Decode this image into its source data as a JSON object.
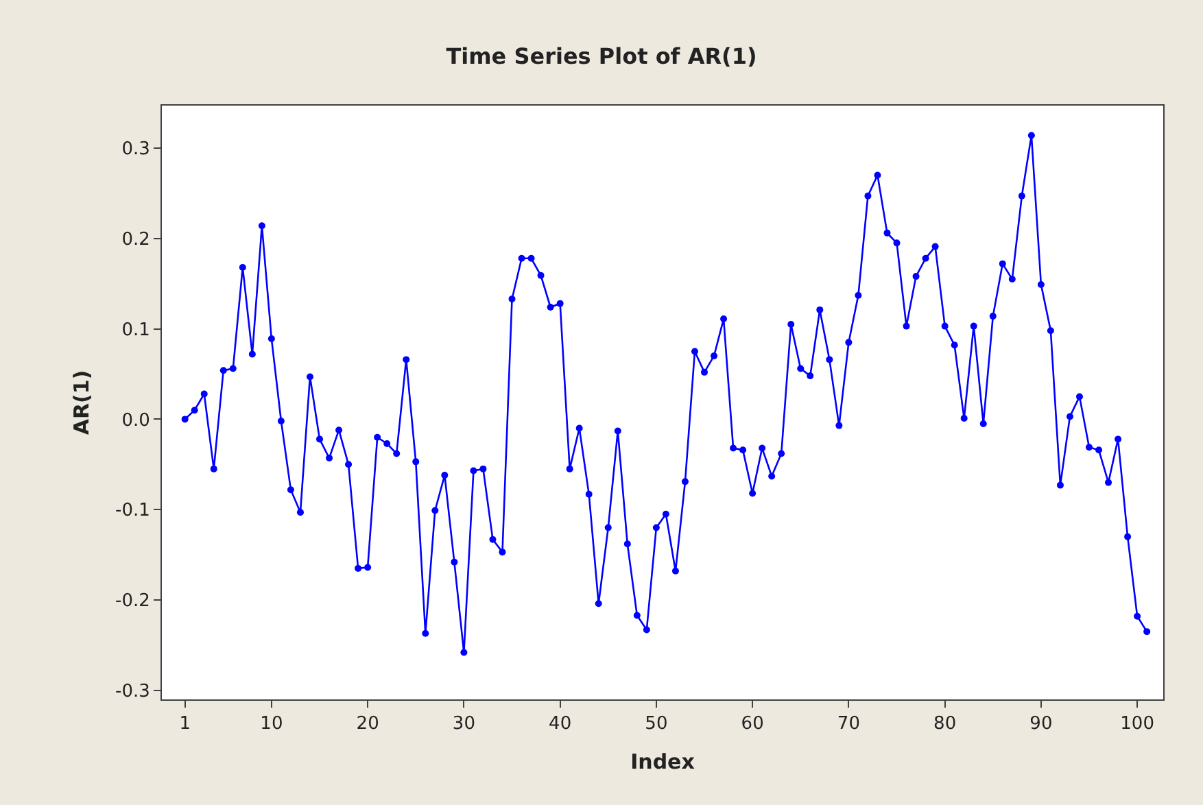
{
  "chart_data": {
    "type": "line",
    "title": "Time Series Plot of AR(1)",
    "xlabel": "Index",
    "ylabel": "AR(1)",
    "x": [
      1,
      2,
      3,
      4,
      5,
      6,
      7,
      8,
      9,
      10,
      11,
      12,
      13,
      14,
      15,
      16,
      17,
      18,
      19,
      20,
      21,
      22,
      23,
      24,
      25,
      26,
      27,
      28,
      29,
      30,
      31,
      32,
      33,
      34,
      35,
      36,
      37,
      38,
      39,
      40,
      41,
      42,
      43,
      44,
      45,
      46,
      47,
      48,
      49,
      50,
      51,
      52,
      53,
      54,
      55,
      56,
      57,
      58,
      59,
      60,
      61,
      62,
      63,
      64,
      65,
      66,
      67,
      68,
      69,
      70,
      71,
      72,
      73,
      74,
      75,
      76,
      77,
      78,
      79,
      80,
      81,
      82,
      83,
      84,
      85,
      86,
      87,
      88,
      89,
      90,
      91,
      92,
      93,
      94,
      95,
      96,
      97,
      98,
      99,
      100,
      101
    ],
    "series": [
      {
        "color": "#0000ff",
        "values": [
          0.0,
          0.01,
          0.028,
          -0.055,
          0.054,
          0.056,
          0.168,
          0.072,
          0.214,
          0.089,
          -0.002,
          -0.078,
          -0.103,
          0.047,
          -0.022,
          -0.043,
          -0.012,
          -0.05,
          -0.165,
          -0.164,
          -0.02,
          -0.027,
          -0.038,
          0.066,
          -0.047,
          -0.237,
          -0.101,
          -0.062,
          -0.158,
          -0.258,
          -0.057,
          -0.055,
          -0.133,
          -0.147,
          0.133,
          0.178,
          0.178,
          0.159,
          0.124,
          0.128,
          -0.055,
          -0.01,
          -0.083,
          -0.204,
          -0.12,
          -0.013,
          -0.138,
          -0.217,
          -0.233,
          -0.12,
          -0.105,
          -0.168,
          -0.069,
          0.075,
          0.052,
          0.07,
          0.111,
          -0.032,
          -0.034,
          -0.082,
          -0.032,
          -0.063,
          -0.038,
          0.105,
          0.056,
          0.048,
          0.121,
          0.066,
          -0.007,
          0.085,
          0.137,
          0.247,
          0.27,
          0.206,
          0.195,
          0.103,
          0.158,
          0.178,
          0.191,
          0.103,
          0.082,
          0.001,
          0.103,
          -0.005,
          0.114,
          0.172,
          0.155,
          0.247,
          0.314,
          0.149,
          0.098,
          -0.073,
          0.003,
          0.025,
          -0.031,
          -0.034,
          -0.07,
          -0.022,
          -0.13,
          -0.218,
          -0.235
        ]
      }
    ],
    "xlim": [
      -1.4,
      102.7
    ],
    "xticks": [
      1,
      10,
      20,
      30,
      40,
      50,
      60,
      70,
      80,
      90,
      100
    ],
    "ylim": [
      -0.31,
      0.347
    ],
    "yticks": [
      {
        "value": -0.3,
        "label": "-0.3"
      },
      {
        "value": -0.2,
        "label": "-0.2"
      },
      {
        "value": -0.1,
        "label": "-0.1"
      },
      {
        "value": 0,
        "label": "0.0"
      },
      {
        "value": 0.1,
        "label": "0.1"
      },
      {
        "value": 0.2,
        "label": "0.2"
      },
      {
        "value": 0.3,
        "label": "0.3"
      }
    ],
    "marker": "circle",
    "line_style": "solid"
  }
}
